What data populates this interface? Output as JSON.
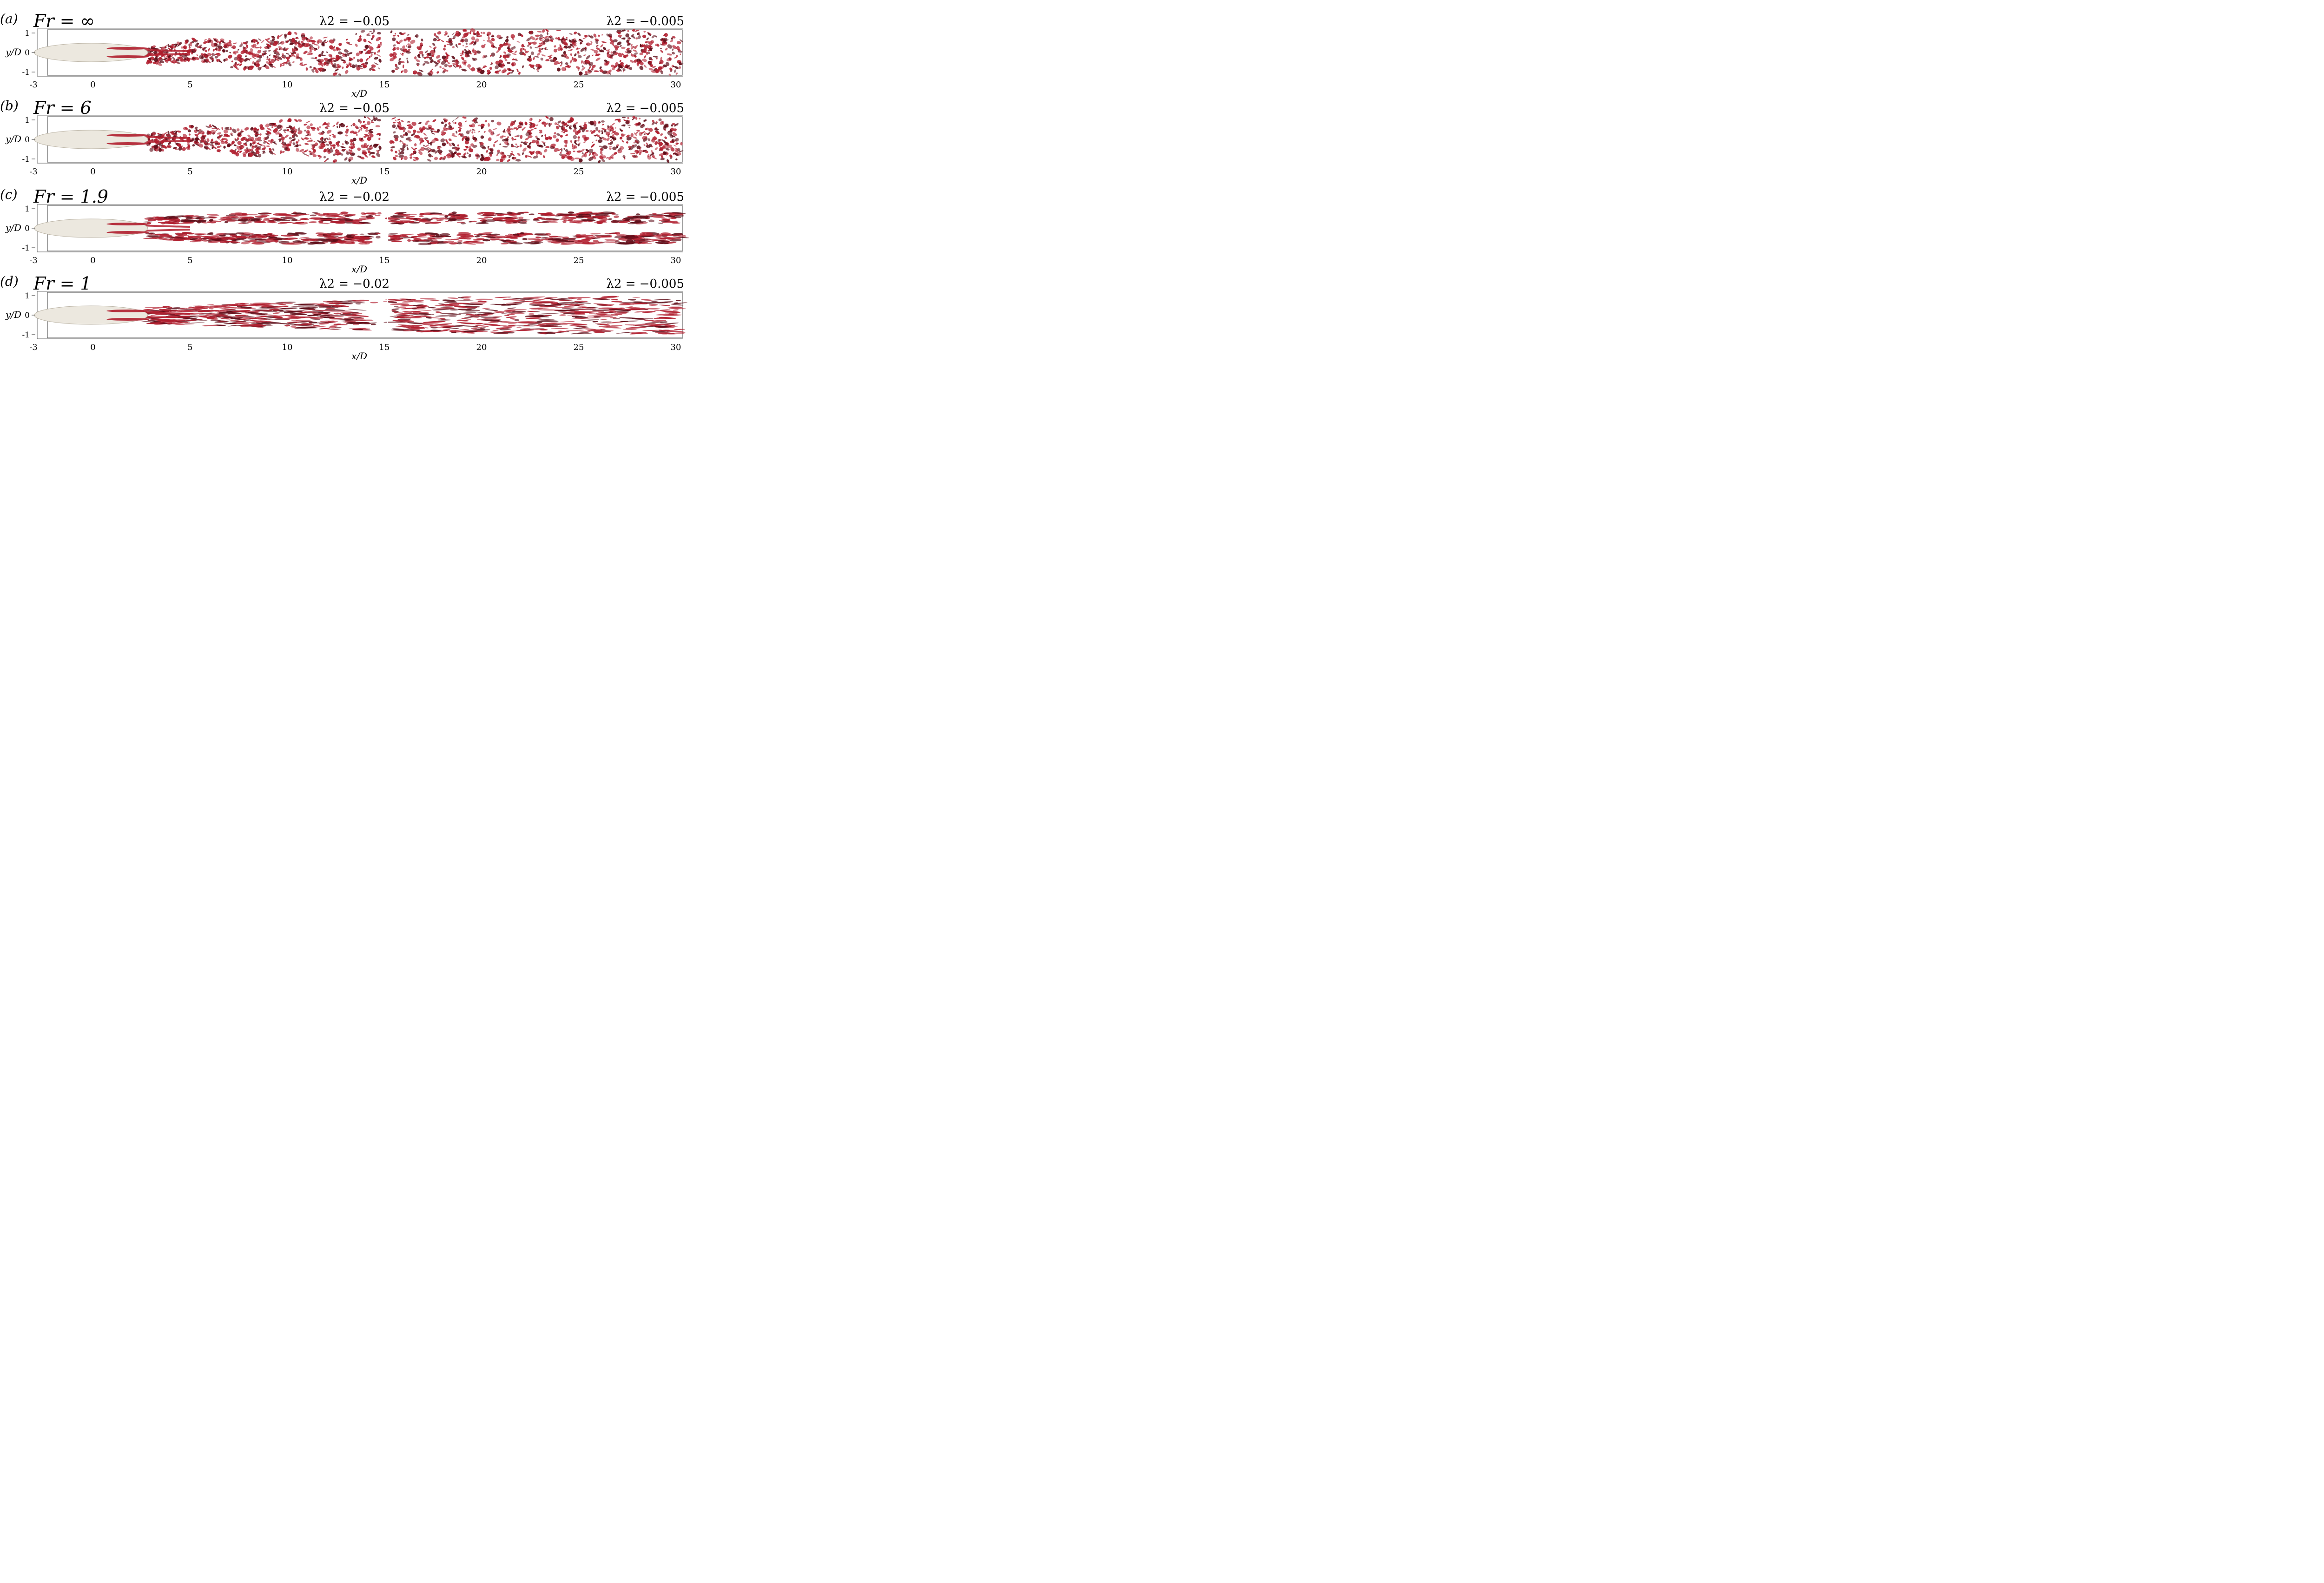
{
  "figure": {
    "panels": [
      {
        "letter": "(a)",
        "fr": "Fr = ∞",
        "lambda_left": "λ2 = −0.05",
        "lambda_right": "λ2 = −0.005",
        "x_ticks": [
          "-3",
          "0",
          "5",
          "10",
          "15",
          "20",
          "25",
          "30"
        ],
        "y_ticks": [
          "1",
          "0",
          "-1"
        ],
        "xlabel": "x/D",
        "ylabel": "y/D",
        "regime": "turbulent"
      },
      {
        "letter": "(b)",
        "fr": "Fr = 6",
        "lambda_left": "λ2 = −0.05",
        "lambda_right": "λ2 = −0.005",
        "x_ticks": [
          "-3",
          "0",
          "5",
          "10",
          "15",
          "20",
          "25",
          "30"
        ],
        "y_ticks": [
          "1",
          "0",
          "-1"
        ],
        "xlabel": "x/D",
        "ylabel": "y/D",
        "regime": "turbulent"
      },
      {
        "letter": "(c)",
        "fr": "Fr = 1.9",
        "lambda_left": "λ2 = −0.02",
        "lambda_right": "λ2 = −0.005",
        "x_ticks": [
          "-3",
          "0",
          "5",
          "10",
          "15",
          "20",
          "25",
          "30"
        ],
        "y_ticks": [
          "1",
          "0",
          "-1"
        ],
        "xlabel": "x/D",
        "ylabel": "y/D",
        "regime": "layered"
      },
      {
        "letter": "(d)",
        "fr": "Fr = 1",
        "lambda_left": "λ2 = −0.02",
        "lambda_right": "λ2 = −0.005",
        "x_ticks": [
          "-3",
          "0",
          "5",
          "10",
          "15",
          "20",
          "25",
          "30"
        ],
        "y_ticks": [
          "1",
          "0",
          "-1"
        ],
        "xlabel": "x/D",
        "ylabel": "y/D",
        "regime": "streaky"
      }
    ],
    "colors": {
      "vortex": "#b01e2e",
      "vortex_dark": "#5e0d18",
      "body": "#ece8df",
      "axis": "#222222"
    }
  }
}
